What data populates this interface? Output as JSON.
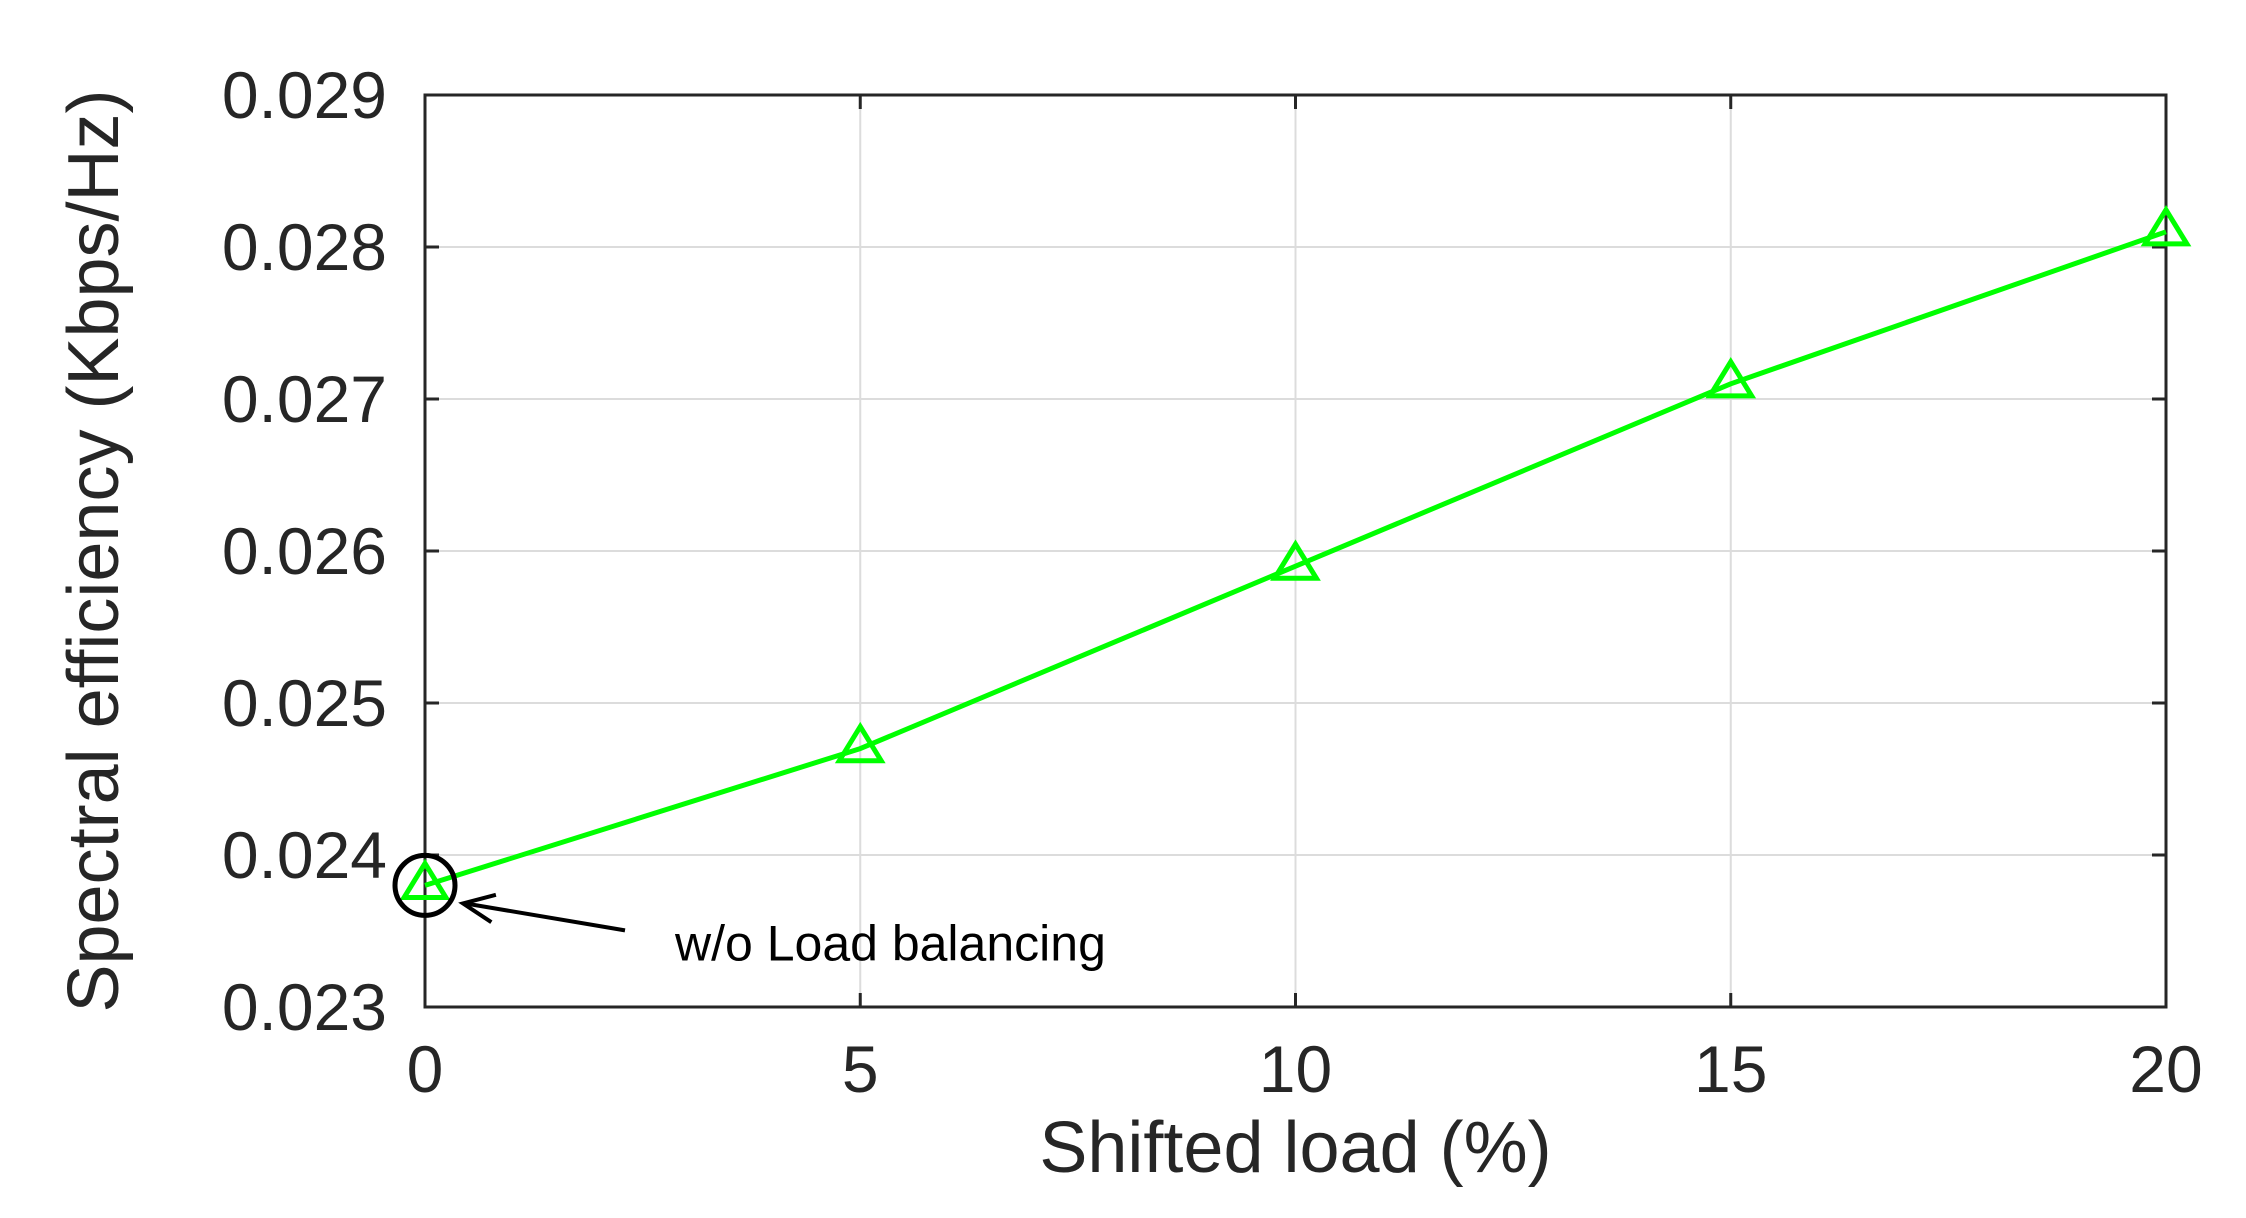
{
  "chart_data": {
    "type": "line",
    "title": "",
    "xlabel": "Shifted load (%)",
    "ylabel": "Spectral efficiency (Kbps/Hz)",
    "xlim": [
      0,
      20
    ],
    "ylim": [
      0.023,
      0.029
    ],
    "xticks": [
      "0",
      "5",
      "10",
      "15",
      "20"
    ],
    "yticks": [
      "0.023",
      "0.024",
      "0.025",
      "0.026",
      "0.027",
      "0.028",
      "0.029"
    ],
    "grid": true,
    "legend": "none",
    "series": [
      {
        "color": "#00ff00",
        "marker": "triangle",
        "x": [
          0,
          5,
          10,
          15,
          20
        ],
        "y": [
          0.0238,
          0.0247,
          0.0259,
          0.0271,
          0.0281
        ]
      }
    ],
    "annotations": [
      {
        "text": "w/o Load balancing",
        "x": 0,
        "y": 0.0238,
        "marker": "circle",
        "arrow": true
      }
    ]
  }
}
